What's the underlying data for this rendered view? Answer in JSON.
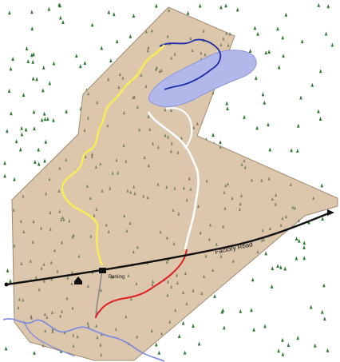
{
  "labels": {
    "road_name": "Factory Road",
    "parking": "Parking",
    "pond": "",
    "road_left_note": "",
    "road_right_note": ""
  },
  "colors": {
    "background": "#ffffff",
    "property_fill": "#dcc7ad",
    "property_edge": "#a08c72",
    "pond_fill": "#b3b8ea",
    "pond_edge": "#8f95d8",
    "tree": "#2f7a33",
    "yellow_trail": "#f5ec57",
    "blue_trail": "#1e2fa8",
    "white_trail": "#ffffff",
    "red_trail": "#e02020",
    "road": "#111111",
    "stream": "#7a86e0",
    "gray_path": "#8a8a8a"
  },
  "icons": [
    "house-icon",
    "parking-icon",
    "arrow-right-icon"
  ],
  "trails": [
    "yellow",
    "blue",
    "white",
    "red",
    "gray"
  ]
}
